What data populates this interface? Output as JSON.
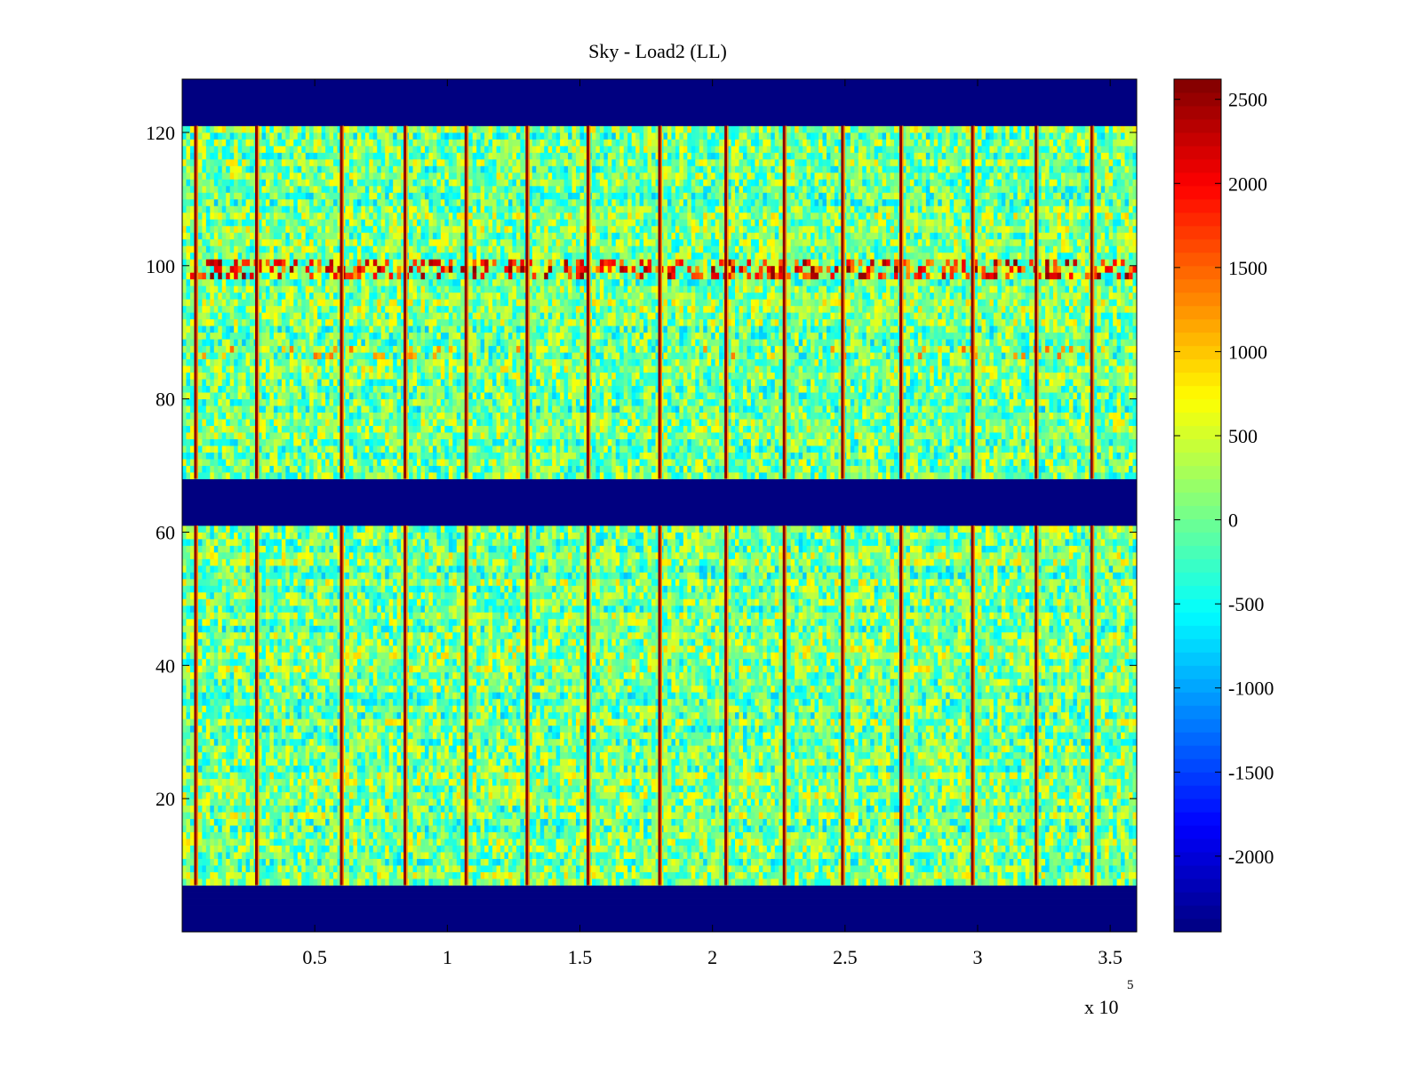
{
  "chart_data": {
    "type": "heatmap",
    "title": "Sky - Load2 (LL)",
    "xlabel": "",
    "ylabel": "",
    "x_multiplier_label": "x 10",
    "x_multiplier_exponent": "5",
    "xlim": [
      0,
      3.6
    ],
    "ylim": [
      0,
      128
    ],
    "x_ticks": [
      0.5,
      1,
      1.5,
      2,
      2.5,
      3,
      3.5
    ],
    "x_tick_labels": [
      "0.5",
      "1",
      "1.5",
      "2",
      "2.5",
      "3",
      "3.5"
    ],
    "y_ticks": [
      20,
      40,
      60,
      80,
      100,
      120
    ],
    "y_tick_labels": [
      "20",
      "40",
      "60",
      "80",
      "100",
      "120"
    ],
    "colormap": "jet",
    "clim": [
      -2450,
      2620
    ],
    "colorbar_ticks": [
      2500,
      2000,
      1500,
      1000,
      500,
      0,
      -500,
      -1000,
      -1500,
      -2000
    ],
    "colorbar_tick_labels": [
      "2500",
      "2000",
      "1500",
      "1000",
      "500",
      "0",
      "-500",
      "-1000",
      "-1500",
      "-2000"
    ],
    "masked_row_bands": [
      {
        "y_from": 0,
        "y_to": 7,
        "value": -2450
      },
      {
        "y_from": 61,
        "y_to": 68,
        "value": -2450
      },
      {
        "y_from": 121,
        "y_to": 128,
        "value": -2450
      }
    ],
    "background_value_range": [
      -700,
      800
    ],
    "hot_column_x": [
      0.05,
      0.28,
      0.6,
      0.84,
      1.07,
      1.3,
      1.53,
      1.8,
      2.05,
      2.27,
      2.49,
      2.71,
      2.98,
      3.22,
      3.43
    ],
    "hot_row_band": {
      "y_from": 98,
      "y_to": 101
    },
    "faint_row_band": {
      "y_from": 86,
      "y_to": 88
    },
    "grid": false,
    "legend": "none"
  }
}
